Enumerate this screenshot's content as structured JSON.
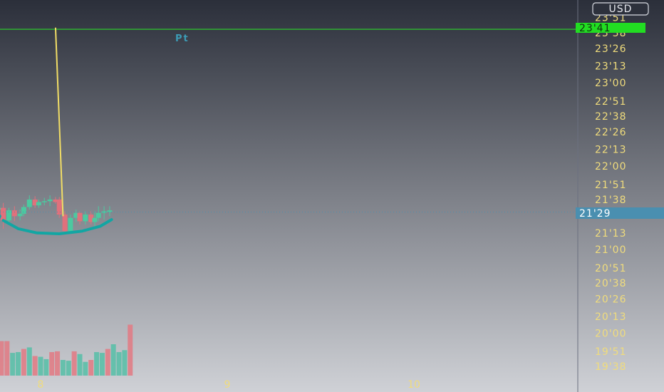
{
  "colors": {
    "background_top": "#2b2f3a",
    "background_bottom": "#cfd1d6",
    "axis_label": "#f0dc7c",
    "up_candle": "#4cc9a0",
    "down_candle": "#e0717c",
    "volume_up": "#5bbfa8",
    "volume_down": "#e07d86",
    "curve": "#12a6a3",
    "alert_line": "#2bd52b",
    "current_price": "#4a8fb0",
    "trend_line": "#f1dd66"
  },
  "currency_badge": "USD",
  "annotation_label": "Pt",
  "alert_label": "23'41",
  "current_price_label": "21'29",
  "chart_data": {
    "type": "candlestick",
    "y_unit": "price in 1/64ths notation",
    "ylim": [
      19.55,
      23.82
    ],
    "price_ticks": [
      "23'51",
      "23'38",
      "23'26",
      "23'13",
      "23'00",
      "22'51",
      "22'38",
      "22'26",
      "22'13",
      "22'00",
      "21'51",
      "21'38",
      "21'26",
      "21'13",
      "21'00",
      "20'51",
      "20'38",
      "20'26",
      "20'13",
      "20'00",
      "19'51",
      "19'38"
    ],
    "price_tick_values": [
      23.78,
      23.6,
      23.41,
      23.2,
      23.0,
      22.78,
      22.6,
      22.41,
      22.2,
      22.0,
      21.78,
      21.6,
      21.41,
      21.2,
      21.0,
      20.78,
      20.6,
      20.41,
      20.2,
      20.0,
      19.78,
      19.6
    ],
    "x_ticks": [
      "8",
      "9",
      "10"
    ],
    "x_tick_values": [
      0.0,
      1.0,
      2.0
    ],
    "alert_price": 23.64,
    "current_price": 21.45,
    "candles": [
      {
        "t": -0.58,
        "o": 20.42,
        "h": 20.46,
        "l": 20.38,
        "c": 20.44
      },
      {
        "t": -0.55,
        "o": 20.44,
        "h": 20.47,
        "l": 20.4,
        "c": 20.42
      },
      {
        "t": -0.53,
        "o": 20.42,
        "h": 20.48,
        "l": 20.4,
        "c": 20.45
      },
      {
        "t": -0.51,
        "o": 20.43,
        "h": 20.46,
        "l": 20.4,
        "c": 20.44
      },
      {
        "t": -0.49,
        "o": 20.44,
        "h": 20.46,
        "l": 20.4,
        "c": 20.43
      },
      {
        "t": -0.47,
        "o": 20.42,
        "h": 20.5,
        "l": 20.4,
        "c": 20.48
      },
      {
        "t": -0.44,
        "o": 20.48,
        "h": 20.85,
        "l": 20.46,
        "c": 20.8
      },
      {
        "t": -0.42,
        "o": 20.8,
        "h": 21.22,
        "l": 20.75,
        "c": 21.12
      },
      {
        "t": -0.39,
        "o": 21.12,
        "h": 21.3,
        "l": 20.78,
        "c": 20.88
      },
      {
        "t": -0.36,
        "o": 20.88,
        "h": 21.18,
        "l": 20.85,
        "c": 21.13
      },
      {
        "t": -0.33,
        "o": 21.13,
        "h": 21.28,
        "l": 21.1,
        "c": 21.22
      },
      {
        "t": -0.3,
        "o": 21.22,
        "h": 21.4,
        "l": 21.18,
        "c": 21.33
      },
      {
        "t": -0.28,
        "o": 21.33,
        "h": 21.48,
        "l": 21.25,
        "c": 21.42
      },
      {
        "t": -0.25,
        "o": 21.42,
        "h": 21.55,
        "l": 21.38,
        "c": 21.48
      },
      {
        "t": -0.22,
        "o": 21.48,
        "h": 21.58,
        "l": 21.4,
        "c": 21.5
      },
      {
        "t": -0.2,
        "o": 21.5,
        "h": 21.56,
        "l": 21.25,
        "c": 21.35
      },
      {
        "t": -0.17,
        "o": 21.35,
        "h": 21.5,
        "l": 21.3,
        "c": 21.47
      },
      {
        "t": -0.14,
        "o": 21.47,
        "h": 21.52,
        "l": 21.34,
        "c": 21.4
      },
      {
        "t": -0.11,
        "o": 21.4,
        "h": 21.48,
        "l": 21.35,
        "c": 21.43
      },
      {
        "t": -0.09,
        "o": 21.43,
        "h": 21.54,
        "l": 21.4,
        "c": 21.51
      },
      {
        "t": -0.06,
        "o": 21.51,
        "h": 21.65,
        "l": 21.48,
        "c": 21.6
      },
      {
        "t": -0.03,
        "o": 21.6,
        "h": 21.64,
        "l": 21.5,
        "c": 21.53
      },
      {
        "t": -0.01,
        "o": 21.53,
        "h": 21.6,
        "l": 21.5,
        "c": 21.57
      },
      {
        "t": 0.02,
        "o": 21.57,
        "h": 21.62,
        "l": 21.53,
        "c": 21.58
      },
      {
        "t": 0.05,
        "o": 21.58,
        "h": 21.65,
        "l": 21.52,
        "c": 21.6
      },
      {
        "t": 0.08,
        "o": 21.6,
        "h": 21.63,
        "l": 21.55,
        "c": 21.57
      },
      {
        "t": 0.1,
        "o": 21.6,
        "h": 21.63,
        "l": 21.38,
        "c": 21.42
      },
      {
        "t": 0.13,
        "o": 21.42,
        "h": 21.46,
        "l": 21.18,
        "c": 21.22
      },
      {
        "t": 0.16,
        "o": 21.22,
        "h": 21.42,
        "l": 21.2,
        "c": 21.38
      },
      {
        "t": 0.19,
        "o": 21.38,
        "h": 21.48,
        "l": 21.33,
        "c": 21.44
      },
      {
        "t": 0.21,
        "o": 21.44,
        "h": 21.46,
        "l": 21.3,
        "c": 21.34
      },
      {
        "t": 0.24,
        "o": 21.34,
        "h": 21.46,
        "l": 21.3,
        "c": 21.42
      },
      {
        "t": 0.27,
        "o": 21.42,
        "h": 21.46,
        "l": 21.3,
        "c": 21.33
      },
      {
        "t": 0.29,
        "o": 21.33,
        "h": 21.46,
        "l": 21.28,
        "c": 21.38
      },
      {
        "t": 0.31,
        "o": 21.38,
        "h": 21.52,
        "l": 21.34,
        "c": 21.44
      },
      {
        "t": 0.34,
        "o": 21.44,
        "h": 21.52,
        "l": 21.36,
        "c": 21.46
      },
      {
        "t": 0.37,
        "o": 21.45,
        "h": 21.52,
        "l": 21.4,
        "c": 21.47
      }
    ],
    "volume": [
      {
        "t": -0.58,
        "v": 0.6,
        "up": false
      },
      {
        "t": -0.56,
        "v": 0.55,
        "up": true
      },
      {
        "t": -0.53,
        "v": 0.5,
        "up": true
      },
      {
        "t": -0.51,
        "v": 0.6,
        "up": true
      },
      {
        "t": -0.48,
        "v": 0.58,
        "up": true
      },
      {
        "t": -0.45,
        "v": 1.55,
        "up": true
      },
      {
        "t": -0.42,
        "v": 2.15,
        "up": true
      },
      {
        "t": -0.39,
        "v": 1.65,
        "up": false
      },
      {
        "t": -0.36,
        "v": 1.15,
        "up": true
      },
      {
        "t": -0.33,
        "v": 0.88,
        "up": true
      },
      {
        "t": -0.3,
        "v": 0.95,
        "up": true
      },
      {
        "t": -0.27,
        "v": 1.05,
        "up": true
      },
      {
        "t": -0.24,
        "v": 0.85,
        "up": true
      },
      {
        "t": -0.21,
        "v": 0.88,
        "up": false
      },
      {
        "t": -0.18,
        "v": 0.88,
        "up": false
      },
      {
        "t": -0.15,
        "v": 0.58,
        "up": true
      },
      {
        "t": -0.12,
        "v": 0.6,
        "up": true
      },
      {
        "t": -0.09,
        "v": 0.68,
        "up": false
      },
      {
        "t": -0.06,
        "v": 0.72,
        "up": true
      },
      {
        "t": -0.03,
        "v": 0.5,
        "up": false
      },
      {
        "t": 0.0,
        "v": 0.48,
        "up": true
      },
      {
        "t": 0.03,
        "v": 0.42,
        "up": true
      },
      {
        "t": 0.06,
        "v": 0.6,
        "up": false
      },
      {
        "t": 0.09,
        "v": 0.62,
        "up": false
      },
      {
        "t": 0.12,
        "v": 0.4,
        "up": true
      },
      {
        "t": 0.15,
        "v": 0.38,
        "up": true
      },
      {
        "t": 0.18,
        "v": 0.62,
        "up": false
      },
      {
        "t": 0.21,
        "v": 0.55,
        "up": true
      },
      {
        "t": 0.24,
        "v": 0.35,
        "up": true
      },
      {
        "t": 0.27,
        "v": 0.4,
        "up": false
      },
      {
        "t": 0.3,
        "v": 0.6,
        "up": true
      },
      {
        "t": 0.33,
        "v": 0.58,
        "up": true
      },
      {
        "t": 0.36,
        "v": 0.68,
        "up": false
      },
      {
        "t": 0.39,
        "v": 0.8,
        "up": true
      },
      {
        "t": 0.42,
        "v": 0.6,
        "up": true
      },
      {
        "t": 0.45,
        "v": 0.65,
        "up": true
      },
      {
        "t": 0.48,
        "v": 1.3,
        "up": false
      }
    ],
    "moving_average": [
      {
        "t": -0.58,
        "p": 19.85
      },
      {
        "t": -0.52,
        "p": 19.98
      },
      {
        "t": -0.47,
        "p": 20.12
      },
      {
        "t": -0.43,
        "p": 20.25
      },
      {
        "t": -0.41,
        "p": 20.4
      },
      {
        "t": -0.39,
        "p": 20.6
      },
      {
        "t": -0.37,
        "p": 20.82
      },
      {
        "t": -0.34,
        "p": 20.98
      },
      {
        "t": -0.3,
        "p": 21.12
      },
      {
        "t": -0.26,
        "p": 21.26
      },
      {
        "t": -0.22,
        "p": 21.4
      }
    ],
    "rounding_curve": [
      {
        "t": -0.2,
        "p": 21.35
      },
      {
        "t": -0.12,
        "p": 21.25
      },
      {
        "t": -0.02,
        "p": 21.2
      },
      {
        "t": 0.1,
        "p": 21.19
      },
      {
        "t": 0.22,
        "p": 21.22
      },
      {
        "t": 0.32,
        "p": 21.28
      },
      {
        "t": 0.38,
        "p": 21.36
      }
    ],
    "trend_line": [
      {
        "t": 0.08,
        "p": 23.66
      },
      {
        "t": 0.12,
        "p": 21.4
      }
    ]
  }
}
